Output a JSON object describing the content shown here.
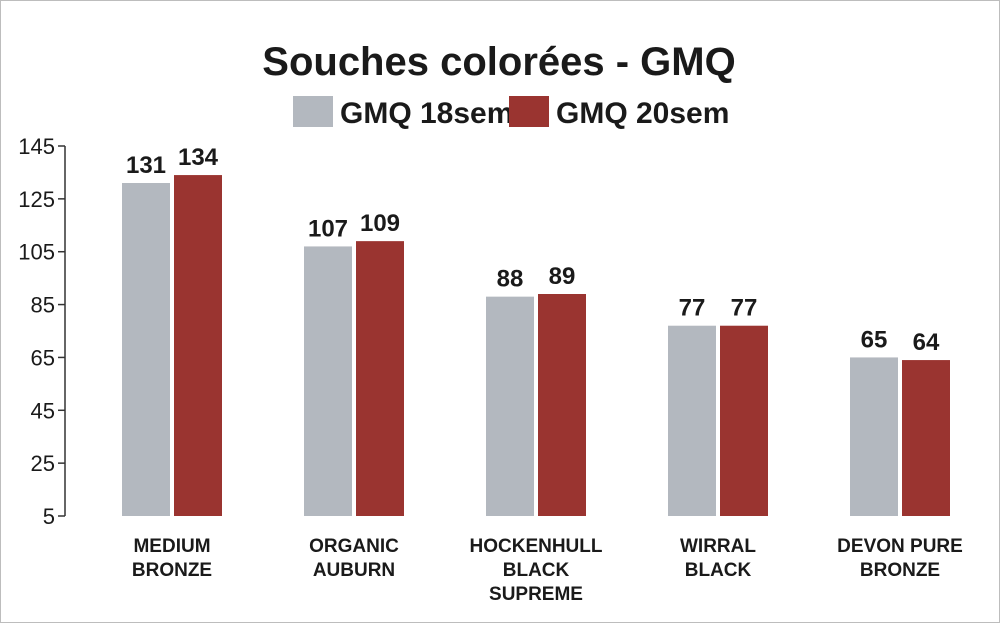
{
  "chart_data": {
    "type": "bar",
    "title": "Souches colorées - GMQ",
    "categories": [
      [
        "MEDIUM",
        "BRONZE"
      ],
      [
        "ORGANIC",
        "AUBURN"
      ],
      [
        "HOCKENHULL",
        "BLACK",
        "SUPREME"
      ],
      [
        "WIRRAL",
        "BLACK"
      ],
      [
        "DEVON PURE",
        "BRONZE"
      ]
    ],
    "series": [
      {
        "name": "GMQ 18sem",
        "color": "#b3b8bf",
        "values": [
          131,
          107,
          88,
          77,
          65
        ]
      },
      {
        "name": "GMQ 20sem",
        "color": "#9a3430",
        "values": [
          134,
          109,
          89,
          77,
          64
        ]
      }
    ],
    "yticks": [
      5,
      25,
      45,
      65,
      85,
      105,
      125,
      145
    ],
    "ylim": [
      5,
      145
    ],
    "xlabel": "",
    "ylabel": "",
    "grid": false,
    "legend_position": "top-center"
  }
}
